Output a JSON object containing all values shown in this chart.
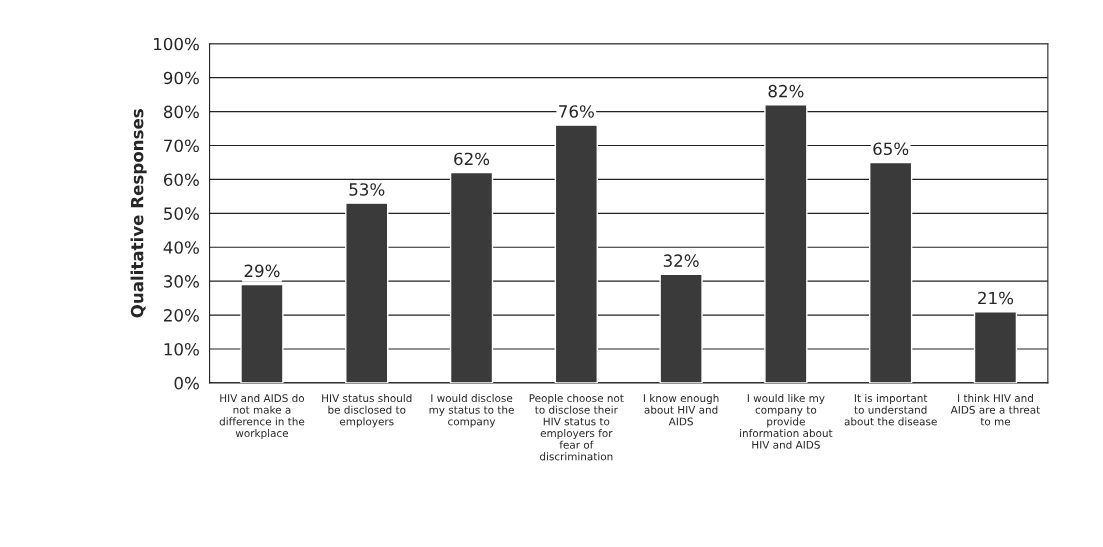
{
  "chart_data": {
    "type": "bar",
    "categories": [
      "HIV and AIDS do not make a difference in the workplace",
      "HIV status should be disclosed to employers",
      "I would disclose my status to the company",
      "People choose not to disclose their HIV status to employers for fear of discrimination",
      "I know enough about HIV and AIDS",
      "I would like my company to provide information about HIV and AIDS",
      "It is important to understand about the disease",
      "I think HIV and AIDS are a threat to me"
    ],
    "values": [
      29,
      53,
      62,
      76,
      32,
      82,
      65,
      21
    ],
    "value_labels": [
      "29%",
      "53%",
      "62%",
      "76%",
      "32%",
      "82%",
      "65%",
      "21%"
    ],
    "color": "#3a3a3a",
    "ylabel": "Qualitative Responses",
    "ylim": [
      0,
      100
    ],
    "yticks": [
      {
        "value": 0,
        "label": "0%"
      },
      {
        "value": 10,
        "label": "10%"
      },
      {
        "value": 20,
        "label": "20%"
      },
      {
        "value": 30,
        "label": "30%"
      },
      {
        "value": 40,
        "label": "40%"
      },
      {
        "value": 50,
        "label": "50%"
      },
      {
        "value": 60,
        "label": "60%"
      },
      {
        "value": 70,
        "label": "70%"
      },
      {
        "value": 80,
        "label": "80%"
      },
      {
        "value": 90,
        "label": "90%"
      },
      {
        "value": 100,
        "label": "100%"
      }
    ],
    "grid": "y"
  }
}
